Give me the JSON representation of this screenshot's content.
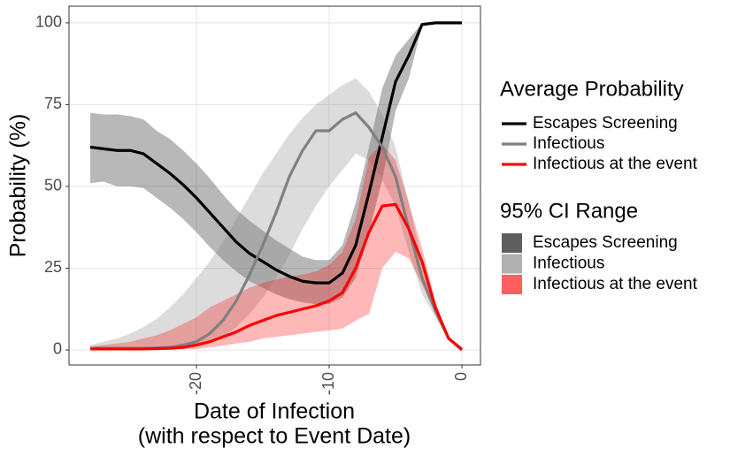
{
  "chart_data": {
    "type": "line",
    "xlabel": [
      "Date of Infection",
      "(with respect to Event Date)"
    ],
    "ylabel": "Probability (%)",
    "x": [
      -28,
      -27,
      -26,
      -25,
      -24,
      -23,
      -22,
      -21,
      -20,
      -19,
      -18,
      -17,
      -16,
      -15,
      -14,
      -13,
      -12,
      -11,
      -10,
      -9,
      -8,
      -7,
      -6,
      -5,
      -4,
      -3,
      -2,
      -1,
      0
    ],
    "xlim": [
      -29.6,
      1.4
    ],
    "xticks": [
      -20,
      -10,
      0
    ],
    "ylim": [
      -4.6,
      105.1
    ],
    "yticks": [
      0,
      25,
      50,
      75,
      100
    ],
    "grid": true,
    "legend_title": "Average Probability",
    "series": [
      {
        "name": "Escapes Screening",
        "color": "#000000",
        "values": [
          62,
          61.5,
          61,
          61,
          60,
          57,
          54,
          50.5,
          46.5,
          42,
          37.5,
          33,
          29.5,
          27,
          24.5,
          22.5,
          21,
          20.5,
          20.5,
          23.5,
          32,
          48,
          65,
          82,
          90,
          99.5,
          100,
          100,
          100
        ]
      },
      {
        "name": "Infectious",
        "color": "#808080",
        "values": [
          0.5,
          0.5,
          0.5,
          0.5,
          0.5,
          0.6,
          0.8,
          1.5,
          2.5,
          5,
          9,
          15,
          23,
          32,
          42,
          53,
          61,
          67,
          67,
          70.5,
          72.5,
          68,
          62,
          53,
          37,
          22,
          12,
          3.5,
          0.3
        ]
      },
      {
        "name": "Infectious at the event",
        "color": "#ff0000",
        "values": [
          0.3,
          0.3,
          0.3,
          0.3,
          0.3,
          0.4,
          0.5,
          0.8,
          1.5,
          2.5,
          4,
          5.5,
          7.5,
          9,
          10.5,
          11.5,
          12.5,
          13.5,
          15,
          17.5,
          25,
          36,
          44,
          44.5,
          37,
          27,
          13,
          3.5,
          0
        ]
      }
    ],
    "band_legend_title": "95% CI Range",
    "band_opacity": 0.28,
    "bands": [
      {
        "name": "Escapes Screening",
        "color": "#000000",
        "upper": [
          72.5,
          72,
          72,
          71.5,
          70.5,
          67,
          64.5,
          61,
          57,
          52.5,
          47.5,
          43,
          39.5,
          36.5,
          33.5,
          31,
          28.5,
          27.5,
          27.5,
          32,
          45,
          62,
          80,
          90,
          95,
          100,
          100,
          100,
          100
        ],
        "lower": [
          51,
          51.5,
          50,
          50,
          49.5,
          46.5,
          43.5,
          40,
          36,
          31.5,
          27.5,
          24,
          21,
          19,
          17,
          15.5,
          14.5,
          14,
          14,
          16,
          22,
          36,
          52,
          73,
          83,
          99,
          100,
          100,
          100
        ]
      },
      {
        "name": "Infectious",
        "color": "#808080",
        "upper": [
          1.5,
          2.5,
          3.5,
          5,
          7,
          9.5,
          13,
          17,
          22,
          27,
          33,
          40,
          47,
          54,
          60,
          66,
          71,
          75,
          78,
          81,
          83,
          79,
          72,
          62,
          45,
          27,
          14,
          4,
          0.5
        ],
        "lower": [
          0,
          0,
          0,
          0,
          0.1,
          0.2,
          0.3,
          0.5,
          1,
          2,
          4,
          7,
          11,
          16,
          22,
          29,
          37,
          44,
          50,
          55,
          60,
          58,
          52,
          44,
          30,
          17,
          10,
          3,
          0
        ]
      },
      {
        "name": "Infectious at the event",
        "color": "#ff0000",
        "upper": [
          1,
          1.5,
          2,
          2.5,
          3.5,
          4.5,
          6,
          8,
          10,
          13,
          15,
          17,
          19,
          20.5,
          21.5,
          22.5,
          23,
          24,
          26,
          30,
          40,
          59,
          63,
          58,
          45,
          31,
          15,
          4,
          0.5
        ],
        "lower": [
          0,
          0,
          0,
          0,
          0,
          0.1,
          0.2,
          0.2,
          0.3,
          0.8,
          1.3,
          2,
          2.5,
          3.5,
          4,
          4.5,
          5,
          5.5,
          6,
          6.5,
          9,
          11,
          25,
          30,
          28,
          20,
          11,
          3,
          0
        ]
      }
    ]
  }
}
